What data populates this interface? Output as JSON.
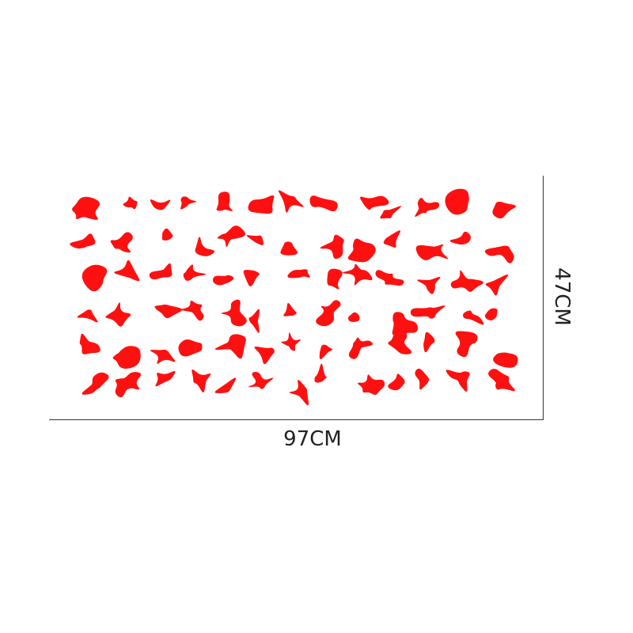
{
  "product": {
    "pattern": "camouflage-sticker",
    "pattern_color": "#FF1010",
    "width_label": "97CM",
    "height_label": "47CM"
  }
}
